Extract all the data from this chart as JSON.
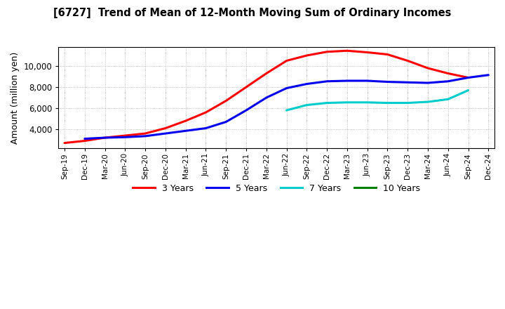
{
  "title": "[6727]  Trend of Mean of 12-Month Moving Sum of Ordinary Incomes",
  "ylabel": "Amount (million yen)",
  "x_labels": [
    "Sep-19",
    "Dec-19",
    "Mar-20",
    "Jun-20",
    "Sep-20",
    "Dec-20",
    "Mar-21",
    "Jun-21",
    "Sep-21",
    "Dec-21",
    "Mar-22",
    "Jun-22",
    "Sep-22",
    "Dec-22",
    "Mar-23",
    "Jun-23",
    "Sep-23",
    "Dec-23",
    "Mar-24",
    "Jun-24",
    "Sep-24",
    "Dec-24"
  ],
  "series": {
    "3 Years": {
      "color": "#FF0000",
      "values": [
        2700,
        2900,
        3200,
        3400,
        3600,
        4100,
        4800,
        5600,
        6700,
        8000,
        9300,
        10500,
        11000,
        11350,
        11450,
        11300,
        11100,
        10500,
        9800,
        9300,
        8900,
        null
      ]
    },
    "5 Years": {
      "color": "#0000EE",
      "values": [
        null,
        3100,
        3200,
        3250,
        3350,
        3600,
        3850,
        4100,
        4700,
        5800,
        7000,
        7900,
        8300,
        8550,
        8600,
        8600,
        8500,
        8450,
        8400,
        8550,
        8900,
        9150
      ]
    },
    "7 Years": {
      "color": "#00CCCC",
      "values": [
        null,
        null,
        null,
        null,
        null,
        null,
        null,
        null,
        null,
        null,
        null,
        5800,
        6300,
        6500,
        6550,
        6550,
        6500,
        6500,
        6600,
        6850,
        7700,
        null
      ]
    },
    "10 Years": {
      "color": "#008000",
      "values": [
        null,
        null,
        null,
        null,
        null,
        null,
        null,
        null,
        null,
        null,
        null,
        null,
        null,
        null,
        null,
        null,
        null,
        null,
        null,
        null,
        null,
        null
      ]
    }
  },
  "ylim_min": 2200,
  "ylim_max": 11800,
  "yticks": [
    4000,
    6000,
    8000,
    10000
  ],
  "background_color": "#FFFFFF",
  "grid_color": "#999999"
}
